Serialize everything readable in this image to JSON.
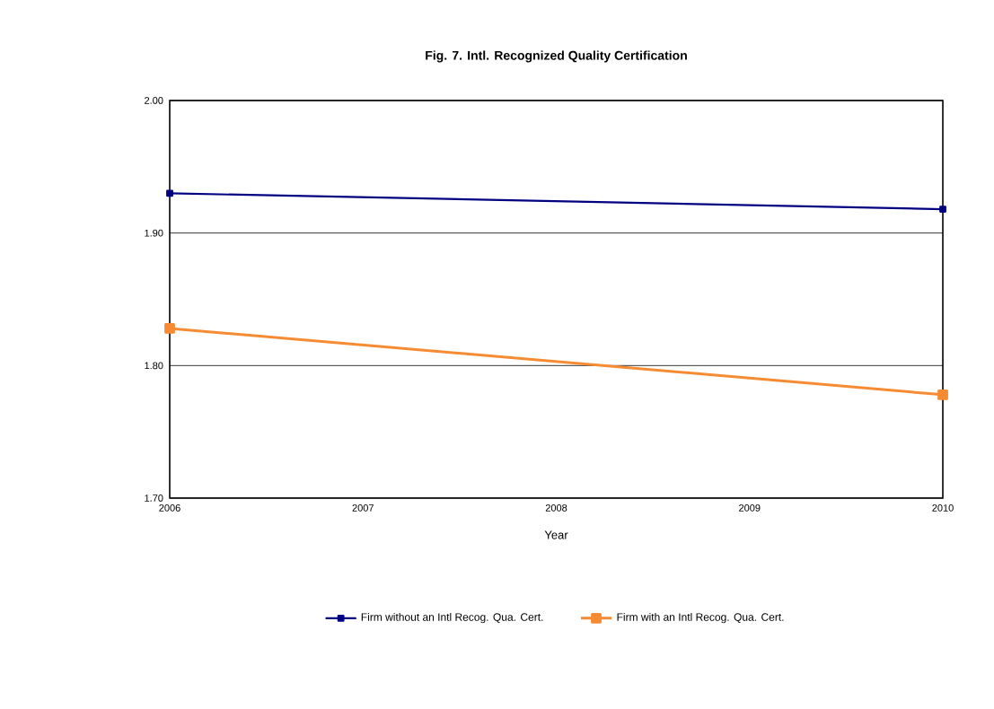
{
  "chart_data": {
    "type": "line",
    "title": "Fig. 7. Intl. Recognized Quality Certification",
    "xlabel": "Year",
    "x": [
      2006,
      2010
    ],
    "series": [
      {
        "name": "Firm without an Intl Recog. Qua. Cert.",
        "color": "#000080",
        "values": [
          1.93,
          1.918
        ]
      },
      {
        "name": "Firm with an Intl Recog. Qua. Cert.",
        "color": "#f68b33",
        "values": [
          1.828,
          1.778
        ]
      }
    ],
    "xlim": [
      2006,
      2010
    ],
    "xticks": [
      2006,
      2007,
      2008,
      2009,
      2010
    ],
    "ylim": [
      1.7,
      2.0
    ],
    "yticks": [
      {
        "value": 1.7,
        "label": "1.70"
      },
      {
        "value": 1.8,
        "label": "1.80"
      },
      {
        "value": 1.9,
        "label": "1.90"
      },
      {
        "value": 2.0,
        "label": "2.00"
      }
    ],
    "grid": "y",
    "legend": "bottom",
    "marker": "square",
    "line_style": "solid"
  }
}
